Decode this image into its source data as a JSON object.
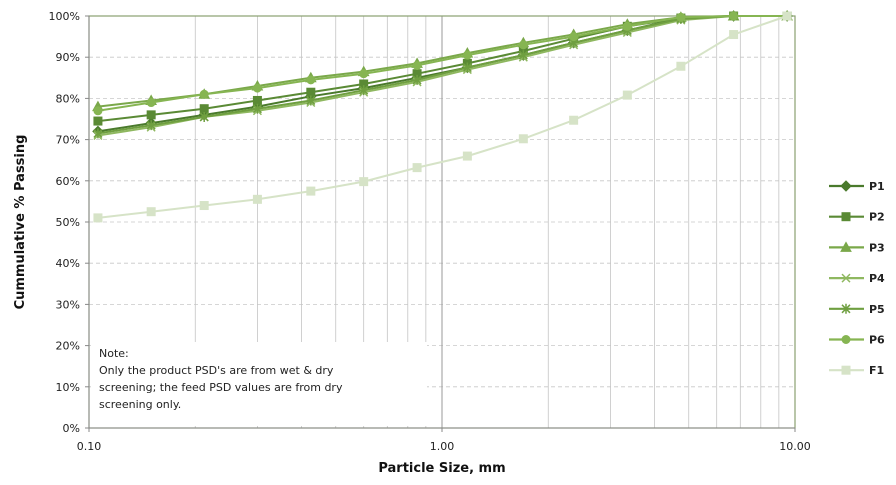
{
  "chart_data": {
    "type": "line",
    "title": "",
    "xlabel": "Particle Size, mm",
    "ylabel": "Cummulative % Passing",
    "x_scale": "log",
    "xlim": [
      0.1,
      10
    ],
    "ylim": [
      0,
      100
    ],
    "x_ticks": [
      "0.10",
      "1.00",
      "10.00"
    ],
    "y_ticks": [
      "0%",
      "10%",
      "20%",
      "30%",
      "40%",
      "50%",
      "60%",
      "70%",
      "80%",
      "90%",
      "100%"
    ],
    "grid": true,
    "legend": "right",
    "x": [
      0.106,
      0.15,
      0.212,
      0.3,
      0.425,
      0.6,
      0.85,
      1.18,
      1.7,
      2.36,
      3.35,
      4.75,
      6.7,
      9.5
    ],
    "series": [
      {
        "name": "P1",
        "marker": "diamond",
        "color": "#4a7a2c",
        "values": [
          72,
          74,
          76,
          78,
          80.5,
          82.5,
          85,
          87.5,
          90.5,
          93.5,
          96.5,
          99.5,
          100,
          100
        ]
      },
      {
        "name": "P2",
        "marker": "square",
        "color": "#5a8a35",
        "values": [
          74.5,
          76,
          77.5,
          79.5,
          81.5,
          83.5,
          86,
          88.5,
          91.5,
          94.5,
          97.5,
          99.5,
          100,
          100
        ]
      },
      {
        "name": "P3",
        "marker": "triangle",
        "color": "#7aa84a",
        "values": [
          78,
          79.5,
          81,
          83,
          85,
          86.5,
          88.5,
          91,
          93.5,
          95.5,
          98,
          99.7,
          100,
          100
        ]
      },
      {
        "name": "P4",
        "marker": "x",
        "color": "#8fb860",
        "values": [
          71,
          73,
          75.5,
          77,
          79,
          81.5,
          84,
          87,
          90,
          93,
          96,
          99,
          100,
          100
        ]
      },
      {
        "name": "P5",
        "marker": "star",
        "color": "#6f9f40",
        "values": [
          71.5,
          73.5,
          75.5,
          77.5,
          79.5,
          82,
          84.5,
          87.5,
          90.5,
          93.5,
          96.5,
          99.3,
          100,
          100
        ]
      },
      {
        "name": "P6",
        "marker": "circle",
        "color": "#86b552",
        "values": [
          77,
          79,
          81,
          82.5,
          84.5,
          86,
          88,
          90.5,
          93,
          95,
          97.5,
          99.7,
          100,
          100
        ]
      },
      {
        "name": "F1",
        "marker": "square",
        "color": "#d6e3c7",
        "values": [
          51,
          52.5,
          54,
          55.5,
          57.5,
          59.8,
          63.2,
          66,
          70.2,
          74.7,
          80.8,
          87.8,
          95.5,
          100
        ]
      }
    ],
    "annotation": {
      "lines": [
        "Note:",
        "Only the product PSD's are from wet & dry",
        "screening; the feed PSD values are from  dry",
        "screening only."
      ]
    }
  }
}
